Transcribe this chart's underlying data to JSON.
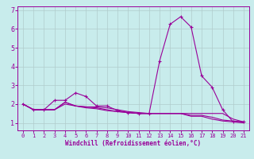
{
  "xlabel": "Windchill (Refroidissement éolien,°C)",
  "background_color": "#c8ecec",
  "line_color": "#990099",
  "grid_color": "#b0cccc",
  "xlim": [
    -0.5,
    21.5
  ],
  "ylim": [
    0.6,
    7.2
  ],
  "xticks": [
    0,
    1,
    2,
    3,
    4,
    5,
    6,
    7,
    8,
    9,
    10,
    11,
    12,
    13,
    14,
    15,
    16,
    17,
    18,
    19,
    20,
    21
  ],
  "yticks": [
    1,
    2,
    3,
    4,
    5,
    6,
    7
  ],
  "series": [
    [
      2.0,
      1.7,
      1.7,
      2.2,
      2.2,
      2.6,
      2.4,
      1.9,
      1.9,
      1.65,
      1.55,
      1.5,
      1.5,
      4.3,
      6.25,
      6.65,
      6.1,
      3.5,
      2.9,
      1.7,
      1.05,
      1.05
    ],
    [
      2.0,
      1.7,
      1.7,
      1.7,
      2.1,
      1.9,
      1.85,
      1.85,
      1.8,
      1.7,
      1.6,
      1.55,
      1.5,
      1.5,
      1.5,
      1.5,
      1.5,
      1.5,
      1.5,
      1.5,
      1.2,
      1.05
    ],
    [
      2.0,
      1.7,
      1.7,
      1.7,
      2.1,
      1.9,
      1.85,
      1.8,
      1.7,
      1.6,
      1.55,
      1.5,
      1.5,
      1.5,
      1.5,
      1.5,
      1.4,
      1.4,
      1.3,
      1.15,
      1.1,
      1.05
    ],
    [
      2.0,
      1.7,
      1.7,
      1.7,
      2.0,
      1.9,
      1.8,
      1.75,
      1.65,
      1.6,
      1.55,
      1.5,
      1.5,
      1.5,
      1.5,
      1.5,
      1.35,
      1.35,
      1.2,
      1.1,
      1.05,
      1.0
    ]
  ],
  "x": [
    0,
    1,
    2,
    3,
    4,
    5,
    6,
    7,
    8,
    9,
    10,
    11,
    12,
    13,
    14,
    15,
    16,
    17,
    18,
    19,
    20,
    21
  ]
}
